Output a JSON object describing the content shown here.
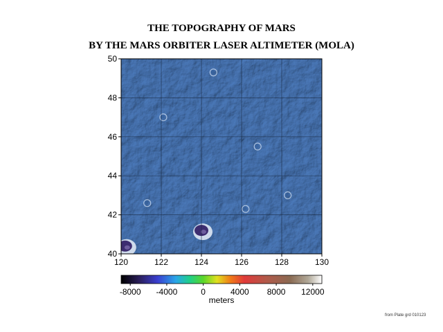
{
  "title": "THE TOPOGRAPHY OF MARS",
  "subtitle": "BY THE MARS ORBITER LASER ALTIMETER (MOLA)",
  "map": {
    "x_ticks": [
      "120",
      "122",
      "124",
      "126",
      "128",
      "130"
    ],
    "y_ticks": [
      "50",
      "48",
      "46",
      "44",
      "42",
      "40"
    ],
    "x_range": [
      120,
      130
    ],
    "y_range": [
      40,
      50
    ],
    "base_color": "#4a78b8",
    "craters": [
      {
        "lon": 124.0,
        "lat": 41.2,
        "kind": "deep"
      },
      {
        "lon": 120.2,
        "lat": 40.4,
        "kind": "deep"
      },
      {
        "lon": 128.3,
        "lat": 43.0,
        "kind": "shallow"
      },
      {
        "lon": 126.8,
        "lat": 45.5,
        "kind": "shallow"
      },
      {
        "lon": 121.3,
        "lat": 42.6,
        "kind": "shallow"
      },
      {
        "lon": 122.1,
        "lat": 47.0,
        "kind": "shallow"
      },
      {
        "lon": 124.6,
        "lat": 49.3,
        "kind": "shallow"
      },
      {
        "lon": 126.2,
        "lat": 42.3,
        "kind": "shallow"
      }
    ]
  },
  "colorbar": {
    "labels": [
      "-8000",
      "-4000",
      "0",
      "4000",
      "8000",
      "12000"
    ],
    "values": [
      -8000,
      -4000,
      0,
      4000,
      8000,
      12000
    ],
    "range": [
      -9000,
      13000
    ],
    "unit": "meters",
    "stops": [
      {
        "value": -9000,
        "color": "#000000"
      },
      {
        "value": -7000,
        "color": "#2b1f5c"
      },
      {
        "value": -5000,
        "color": "#3a3fd0"
      },
      {
        "value": -3000,
        "color": "#2aa6e8"
      },
      {
        "value": -1500,
        "color": "#1fcf8a"
      },
      {
        "value": 0,
        "color": "#5ad62a"
      },
      {
        "value": 1500,
        "color": "#e0e020"
      },
      {
        "value": 3000,
        "color": "#f07a18"
      },
      {
        "value": 4500,
        "color": "#e03a3a"
      },
      {
        "value": 7000,
        "color": "#b05a4a"
      },
      {
        "value": 9500,
        "color": "#8a6a52"
      },
      {
        "value": 11500,
        "color": "#b0a898"
      },
      {
        "value": 13000,
        "color": "#ffffff"
      }
    ]
  },
  "credit": "from Plate grd 010123"
}
